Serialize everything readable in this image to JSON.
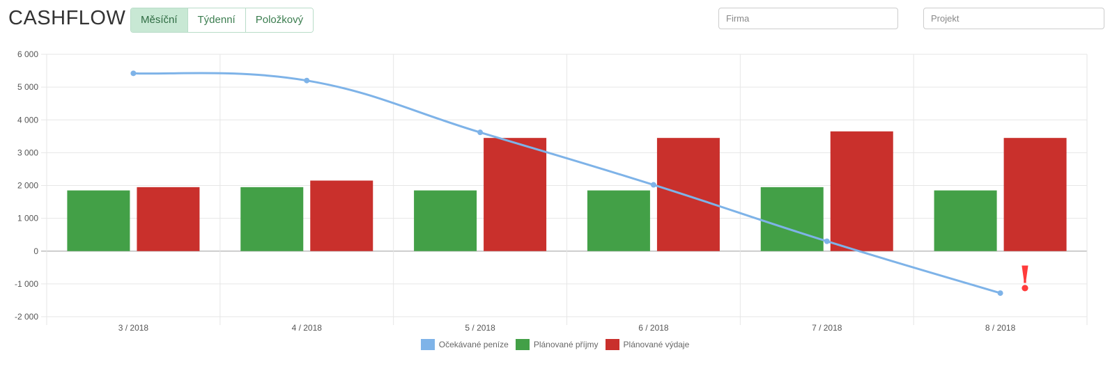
{
  "header": {
    "title": "CASHFLOW",
    "tabs": [
      {
        "label": "Měsíční",
        "active": true
      },
      {
        "label": "Týdenní",
        "active": false
      },
      {
        "label": "Položkový",
        "active": false
      }
    ],
    "firma_placeholder": "Firma",
    "projekt_placeholder": "Projekt"
  },
  "warning_mark": "!",
  "colors": {
    "accent_tab": "#c8e8d4",
    "line": "#7eb3e8",
    "income": "#43a047",
    "expense": "#c9302c",
    "warning": "#ff3b3b"
  },
  "chart_data": {
    "type": "bar",
    "categories": [
      "3 / 2018",
      "4 / 2018",
      "5 / 2018",
      "6 / 2018",
      "7 / 2018",
      "8 / 2018"
    ],
    "ylim": [
      -2000,
      6000
    ],
    "yticks": [
      6000,
      5000,
      4000,
      3000,
      2000,
      1000,
      0,
      -1000,
      -2000
    ],
    "ytick_labels": [
      "6 000",
      "5 000",
      "4 000",
      "3 000",
      "2 000",
      "1 000",
      "0",
      "-1 000",
      "-2 000"
    ],
    "grid": true,
    "legend_position": "bottom",
    "series": [
      {
        "name": "Očekávané peníze",
        "type": "line",
        "color": "#7eb3e8",
        "values": [
          5420,
          5200,
          3620,
          2020,
          300,
          -1280
        ]
      },
      {
        "name": "Plánované příjmy",
        "type": "bar",
        "color": "#43a047",
        "values": [
          1850,
          1950,
          1850,
          1850,
          1950,
          1850
        ]
      },
      {
        "name": "Plánované výdaje",
        "type": "bar",
        "color": "#c9302c",
        "values": [
          1950,
          2150,
          3450,
          3450,
          3650,
          3450
        ]
      }
    ]
  }
}
